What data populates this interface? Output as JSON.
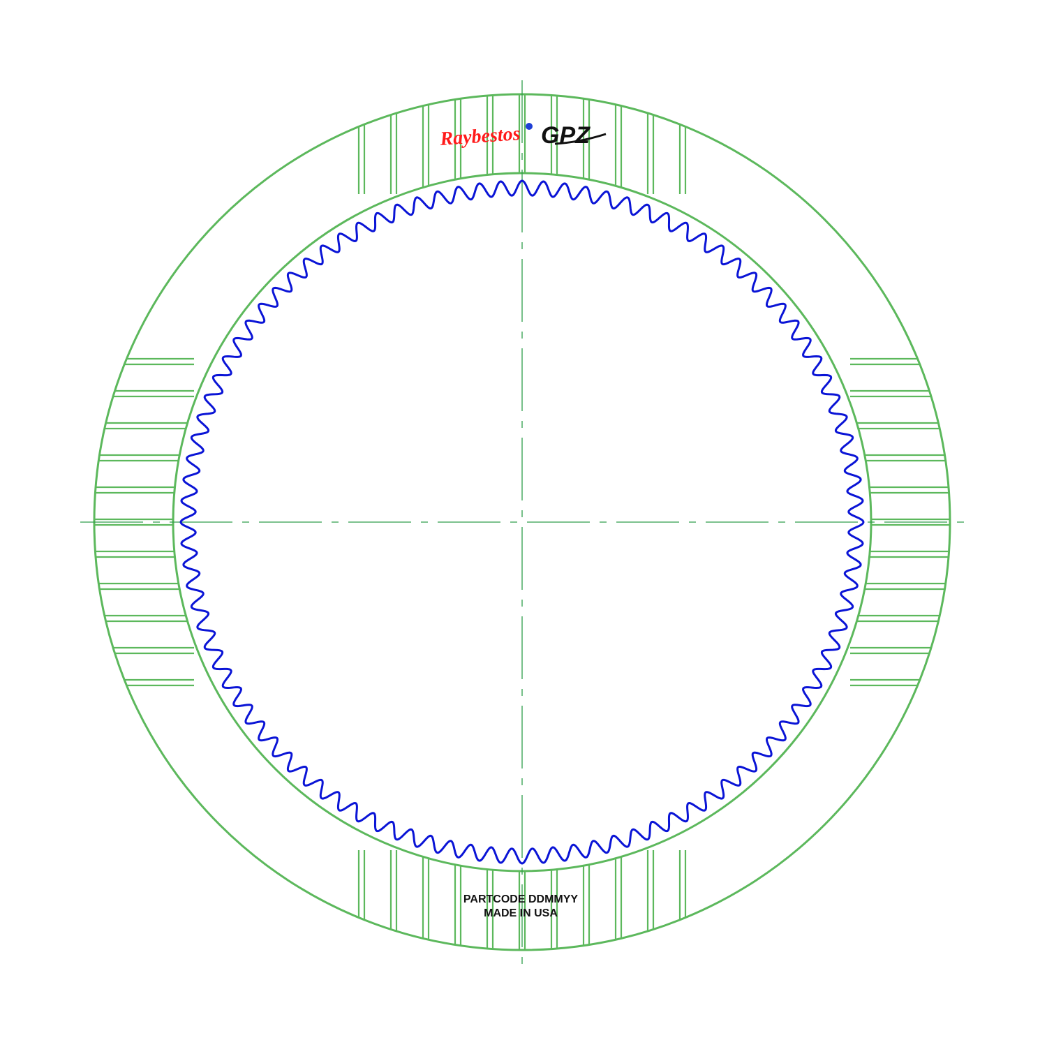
{
  "diagram": {
    "logo": {
      "brand_text": "Raybestos",
      "product_text": "GPZ",
      "registered_mark": "®"
    },
    "part_marking": {
      "line1": "PARTCODE DDMMYY",
      "line2": "MADE IN USA"
    },
    "spline_tooth_count": 100,
    "groove_pads": 4,
    "colors": {
      "friction_ring": "#5cb85c",
      "spline": "#0a14d6",
      "centerline": "#2e9e4a",
      "brand_red": "#ff1a1a",
      "text": "#111111",
      "background": "#ffffff"
    }
  }
}
